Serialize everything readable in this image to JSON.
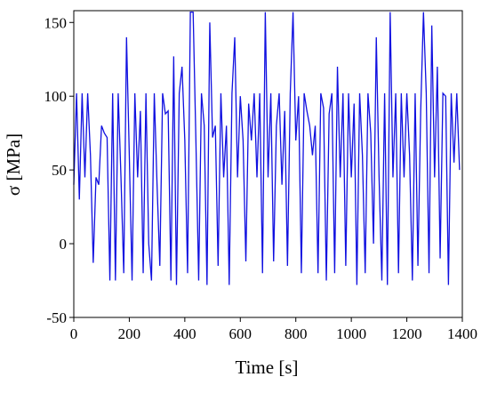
{
  "chart_data": {
    "type": "line",
    "x_label": "Time [s]",
    "y_label": "σ [MPa]",
    "xlim": [
      0,
      1400
    ],
    "ylim": [
      -50,
      158
    ],
    "xticks": [
      0,
      200,
      400,
      600,
      800,
      1000,
      1200,
      1400
    ],
    "yticks": [
      -50,
      0,
      50,
      100,
      150
    ],
    "series": [
      {
        "color": "#1010e0",
        "x": [
          0,
          10,
          20,
          30,
          40,
          50,
          60,
          70,
          80,
          90,
          100,
          110,
          120,
          130,
          140,
          150,
          160,
          170,
          180,
          190,
          200,
          210,
          220,
          230,
          240,
          250,
          260,
          270,
          280,
          290,
          300,
          310,
          320,
          330,
          340,
          350,
          360,
          370,
          380,
          390,
          400,
          410,
          420,
          430,
          440,
          450,
          460,
          470,
          480,
          490,
          500,
          510,
          520,
          530,
          540,
          550,
          560,
          570,
          580,
          590,
          600,
          610,
          620,
          630,
          640,
          650,
          660,
          670,
          680,
          690,
          700,
          710,
          720,
          730,
          740,
          750,
          760,
          770,
          780,
          790,
          800,
          810,
          820,
          830,
          840,
          850,
          860,
          870,
          880,
          890,
          900,
          910,
          920,
          930,
          940,
          950,
          960,
          970,
          980,
          990,
          1000,
          1010,
          1020,
          1030,
          1040,
          1050,
          1060,
          1070,
          1080,
          1090,
          1100,
          1110,
          1120,
          1130,
          1140,
          1150,
          1160,
          1170,
          1180,
          1190,
          1200,
          1210,
          1220,
          1230,
          1240,
          1250,
          1260,
          1270,
          1280,
          1290,
          1300,
          1310,
          1320,
          1330,
          1340,
          1350,
          1360,
          1370,
          1380,
          1390
        ],
        "values": [
          40,
          102,
          30,
          102,
          45,
          102,
          60,
          -13,
          45,
          40,
          80,
          75,
          72,
          -25,
          102,
          -25,
          102,
          45,
          -20,
          140,
          60,
          -25,
          102,
          45,
          90,
          -20,
          102,
          0,
          -25,
          102,
          40,
          -15,
          102,
          88,
          90,
          -25,
          127,
          -28,
          102,
          120,
          70,
          -20,
          157,
          157,
          70,
          -25,
          102,
          80,
          -28,
          150,
          72,
          80,
          -15,
          102,
          45,
          80,
          -28,
          102,
          140,
          45,
          100,
          70,
          -12,
          95,
          70,
          102,
          45,
          102,
          -20,
          157,
          45,
          102,
          -12,
          80,
          102,
          40,
          90,
          -15,
          102,
          157,
          70,
          100,
          -20,
          102,
          90,
          80,
          60,
          80,
          -20,
          102,
          92,
          -25,
          88,
          102,
          -20,
          120,
          45,
          102,
          -15,
          102,
          45,
          95,
          -28,
          102,
          60,
          -20,
          102,
          75,
          0,
          140,
          45,
          -25,
          102,
          -28,
          157,
          45,
          102,
          -20,
          102,
          45,
          102,
          60,
          -25,
          102,
          -15,
          90,
          157,
          102,
          -20,
          148,
          45,
          120,
          -10,
          102,
          100,
          -28,
          102,
          55,
          102,
          50
        ]
      }
    ]
  }
}
